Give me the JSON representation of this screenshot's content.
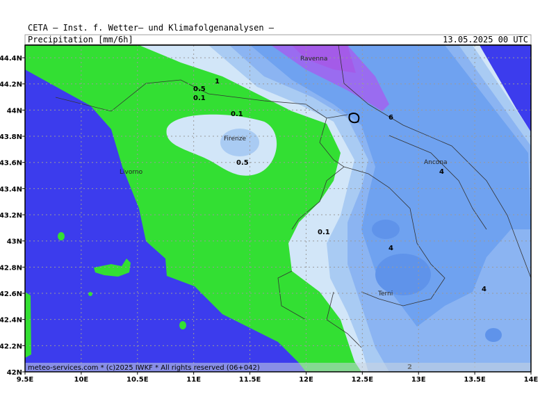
{
  "header": {
    "title": "CETA — Inst. f. Wetter— und Klimafolgenanalysen —",
    "parameter": "Precipitation [mm/6h]",
    "date": "13.05.2025 00 UTC"
  },
  "x_ticks": [
    "9.5E",
    "10E",
    "10.5E",
    "11E",
    "11.5E",
    "12E",
    "12.5E",
    "13E",
    "13.5E",
    "14E"
  ],
  "y_ticks": [
    "42N",
    "42.2N",
    "42.4N",
    "42.6N",
    "42.8N",
    "43N",
    "43.2N",
    "43.4N",
    "43.6N",
    "43.8N",
    "44N",
    "44.2N",
    "44.4N"
  ],
  "cities": [
    "Ravenna",
    "Firenze",
    "Livorno",
    "Ancona",
    "Terni"
  ],
  "contour_labels": [
    "1",
    "0.5",
    "0.1",
    "0.1",
    "0.5",
    "0.1",
    "6",
    "4",
    "4",
    "4",
    "2"
  ],
  "footer": "meteo-services.com * (c)2025 IWKF * All rights reserved (06+042)"
}
